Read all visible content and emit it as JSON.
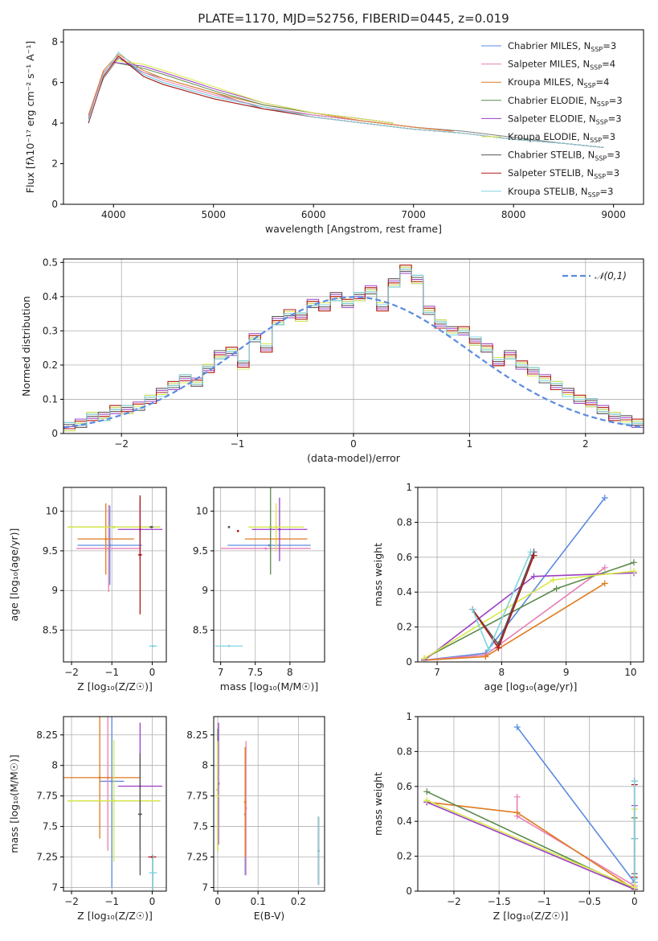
{
  "figure_title": "PLATE=1170, MJD=52756, FIBERID=0445, z=0.019",
  "series_colors": [
    "#5b8be0",
    "#e87fb5",
    "#e07a1f",
    "#5a8a4a",
    "#9b3fc4",
    "#d8e84a",
    "#555555",
    "#b01818",
    "#7fd4e0"
  ],
  "chart_data": [
    {
      "id": "spectrum",
      "type": "line",
      "title": "PLATE=1170, MJD=52756, FIBERID=0445, z=0.019",
      "xlabel": "wavelength [Angstrom, rest frame]",
      "ylabel": "Flux [fλ10⁻¹⁷ erg cm⁻² s⁻¹ A⁻¹]",
      "xlim": [
        3500,
        9300
      ],
      "ylim": [
        0,
        8.6
      ],
      "xticks": [
        4000,
        5000,
        6000,
        7000,
        8000,
        9000
      ],
      "yticks": [
        0,
        2,
        4,
        6,
        8
      ],
      "legend": "top-right",
      "data": {
        "color": "#808080",
        "x": [
          3750,
          3900,
          4050,
          4300,
          4500,
          5000,
          5500,
          6000,
          6500,
          7000,
          7500,
          8000,
          8500,
          8900
        ],
        "y": [
          4.2,
          6.2,
          7.2,
          6.5,
          6.2,
          5.5,
          4.7,
          4.4,
          4.1,
          3.8,
          3.6,
          3.3,
          3.0,
          2.8
        ]
      },
      "series": [
        {
          "name": "Chabrier MILES, N_SSP=3",
          "label_main": "Chabrier MILES, N",
          "label_sub": "SSP",
          "label_tail": "=3",
          "x": [
            3750,
            3900,
            4050,
            4300,
            4500,
            5000,
            5500,
            6000,
            6500,
            7000,
            7400
          ],
          "y": [
            4.3,
            6.5,
            7.3,
            6.4,
            6.0,
            5.3,
            4.8,
            4.4,
            4.1,
            3.8,
            3.6
          ]
        },
        {
          "name": "Salpeter MILES, N_SSP=4",
          "label_main": "Salpeter MILES, N",
          "label_sub": "SSP",
          "label_tail": "=4",
          "x": [
            3750,
            3900,
            4050,
            4300,
            4500,
            5000,
            5500,
            6000,
            6500,
            7000,
            7400
          ],
          "y": [
            4.3,
            6.5,
            7.3,
            6.5,
            6.1,
            5.4,
            4.8,
            4.4,
            4.1,
            3.8,
            3.6
          ]
        },
        {
          "name": "Kroupa MILES, N_SSP=4",
          "label_main": "Kroupa MILES, N",
          "label_sub": "SSP",
          "label_tail": "=4",
          "x": [
            3750,
            3900,
            4050,
            4300,
            4500,
            5000,
            5500,
            6000,
            6500,
            7000,
            7400
          ],
          "y": [
            4.4,
            6.6,
            7.4,
            6.6,
            6.2,
            5.5,
            4.9,
            4.5,
            4.1,
            3.8,
            3.6
          ]
        },
        {
          "name": "Chabrier ELODIE, N_SSP=3",
          "label_main": "Chabrier ELODIE, N",
          "label_sub": "SSP",
          "label_tail": "=3",
          "x": [
            4000,
            4300,
            4500,
            5000,
            5500,
            6000,
            6500,
            6800
          ],
          "y": [
            7.0,
            6.7,
            6.4,
            5.6,
            4.9,
            4.5,
            4.2,
            4.0
          ]
        },
        {
          "name": "Salpeter ELODIE, N_SSP=3",
          "label_main": "Salpeter ELODIE, N",
          "label_sub": "SSP",
          "label_tail": "=3",
          "x": [
            4000,
            4300,
            4500,
            5000,
            5500,
            6000,
            6500,
            6800
          ],
          "y": [
            7.0,
            6.8,
            6.5,
            5.7,
            5.0,
            4.5,
            4.2,
            4.0
          ]
        },
        {
          "name": "Kroupa ELODIE, N_SSP=3",
          "label_main": "Kroupa ELODIE, N",
          "label_sub": "SSP",
          "label_tail": "=3",
          "x": [
            4000,
            4300,
            4500,
            5000,
            5500,
            6000,
            6500,
            6800
          ],
          "y": [
            7.1,
            6.9,
            6.6,
            5.8,
            5.0,
            4.5,
            4.2,
            4.0
          ]
        },
        {
          "name": "Chabrier STELIB, N_SSP=3",
          "label_main": "Chabrier STELIB, N",
          "label_sub": "SSP",
          "label_tail": "=3",
          "x": [
            3750,
            3900,
            4050,
            4300,
            4500,
            5000,
            5500,
            6000,
            6500,
            7000,
            7500,
            8000,
            8500,
            8900
          ],
          "y": [
            4.0,
            6.3,
            7.3,
            6.3,
            5.9,
            5.2,
            4.7,
            4.3,
            4.0,
            3.7,
            3.5,
            3.2,
            3.0,
            2.8
          ]
        },
        {
          "name": "Salpeter STELIB, N_SSP=3",
          "label_main": "Salpeter STELIB, N",
          "label_sub": "SSP",
          "label_tail": "=3",
          "x": [
            3750,
            3900,
            4050,
            4300,
            4500,
            5000,
            5500,
            6000,
            6500,
            7000,
            7500,
            8000,
            8500,
            8900
          ],
          "y": [
            4.0,
            6.3,
            7.3,
            6.3,
            5.9,
            5.2,
            4.7,
            4.3,
            4.0,
            3.7,
            3.5,
            3.2,
            3.0,
            2.8
          ]
        },
        {
          "name": "Kroupa STELIB, N_SSP=3",
          "label_main": "Kroupa STELIB, N",
          "label_sub": "SSP",
          "label_tail": "=3",
          "x": [
            3750,
            3900,
            4050,
            4300,
            4500,
            5000,
            5500,
            6000,
            6500,
            7000,
            7500,
            8000,
            8500,
            8900
          ],
          "y": [
            4.1,
            6.4,
            7.5,
            6.4,
            6.0,
            5.3,
            4.8,
            4.3,
            4.0,
            3.7,
            3.5,
            3.2,
            3.0,
            2.8
          ]
        }
      ]
    },
    {
      "id": "residuals",
      "type": "line",
      "xlabel": "(data-model)/error",
      "ylabel": "Normed distribution",
      "xlim": [
        -2.5,
        2.5
      ],
      "ylim": [
        0,
        0.51
      ],
      "xticks": [
        -2,
        -1,
        0,
        1,
        2
      ],
      "yticks": [
        0.0,
        0.1,
        0.2,
        0.3,
        0.4,
        0.5
      ],
      "grid": true,
      "legend": "top-right",
      "reference_label": "𝒩(0,1)",
      "reference_color": "#5b8be0",
      "hist_edges_start": -2.5,
      "hist_bin_width": 0.1,
      "hist_values": [
        0.02,
        0.03,
        0.05,
        0.05,
        0.07,
        0.07,
        0.08,
        0.1,
        0.12,
        0.14,
        0.16,
        0.15,
        0.19,
        0.23,
        0.24,
        0.2,
        0.28,
        0.25,
        0.33,
        0.35,
        0.34,
        0.38,
        0.37,
        0.4,
        0.38,
        0.4,
        0.42,
        0.37,
        0.44,
        0.48,
        0.45,
        0.36,
        0.32,
        0.3,
        0.3,
        0.27,
        0.25,
        0.21,
        0.23,
        0.2,
        0.18,
        0.16,
        0.14,
        0.12,
        0.1,
        0.09,
        0.07,
        0.05,
        0.04,
        0.03
      ]
    },
    {
      "id": "age-vs-Z",
      "type": "scatter",
      "xlabel": "Z [log₁₀(Z/Z☉)]",
      "ylabel": "age  [log₁₀(age/yr)]",
      "xlim": [
        -2.2,
        0.35
      ],
      "ylim": [
        8.1,
        10.3
      ],
      "xticks": [
        -2,
        -1,
        0
      ],
      "yticks": [
        8.5,
        9.0,
        9.5,
        10.0
      ],
      "grid": true,
      "points": [
        {
          "color": "#5b8be0",
          "x": -1.05,
          "y": 9.57,
          "xerr": 0.8,
          "yerr": 0.5
        },
        {
          "color": "#e87fb5",
          "x": -1.08,
          "y": 9.53,
          "xerr": 0.8,
          "yerr": 0.55
        },
        {
          "color": "#e07a1f",
          "x": -1.15,
          "y": 9.65,
          "xerr": 0.7,
          "yerr": 0.45
        },
        {
          "color": "#5a8a4a",
          "x": -0.95,
          "y": 9.8,
          "xerr": 1.15,
          "yerr": 0.0
        },
        {
          "color": "#9b3fc4",
          "x": -0.3,
          "y": 9.77,
          "xerr": 0.55,
          "yerr": 0.38
        },
        {
          "color": "#d8e84a",
          "x": -0.95,
          "y": 9.8,
          "xerr": 1.15,
          "yerr": 0.0
        },
        {
          "color": "#555555",
          "x": -0.02,
          "y": 9.8,
          "xerr": 0.05,
          "yerr": 0.0
        },
        {
          "color": "#b01818",
          "x": -0.3,
          "y": 9.45,
          "xerr": 0.05,
          "yerr": 0.75
        },
        {
          "color": "#7fd4e0",
          "x": 0.02,
          "y": 8.3,
          "xerr": 0.1,
          "yerr": 0.0
        }
      ]
    },
    {
      "id": "age-vs-mass",
      "type": "scatter",
      "xlabel": "mass [log₁₀(M/M☉)]",
      "ylabel": "",
      "xlim": [
        6.9,
        8.5
      ],
      "ylim": [
        8.1,
        10.3
      ],
      "xticks": [
        7.0,
        7.5,
        8.0
      ],
      "yticks": [
        8.5,
        9.0,
        9.5,
        10.0
      ],
      "grid": true,
      "points": [
        {
          "color": "#5b8be0",
          "x": 7.7,
          "y": 9.57,
          "xerr": 0.6,
          "yerr": 0.0
        },
        {
          "color": "#e87fb5",
          "x": 7.65,
          "y": 9.53,
          "xerr": 0.65,
          "yerr": 0.0
        },
        {
          "color": "#e07a1f",
          "x": 7.8,
          "y": 9.65,
          "xerr": 0.45,
          "yerr": 0.0
        },
        {
          "color": "#5a8a4a",
          "x": 7.72,
          "y": 9.8,
          "xerr": 0.0,
          "yerr": 0.6
        },
        {
          "color": "#9b3fc4",
          "x": 7.85,
          "y": 9.77,
          "xerr": 0.4,
          "yerr": 0.4
        },
        {
          "color": "#d8e84a",
          "x": 7.8,
          "y": 9.8,
          "xerr": 0.4,
          "yerr": 0.3
        },
        {
          "color": "#555555",
          "x": 7.12,
          "y": 9.8,
          "xerr": 0.0,
          "yerr": 0.0
        },
        {
          "color": "#b01818",
          "x": 7.25,
          "y": 9.75,
          "xerr": 0.0,
          "yerr": 0.0
        },
        {
          "color": "#7fd4e0",
          "x": 7.12,
          "y": 8.3,
          "xerr": 0.2,
          "yerr": 0.0
        }
      ]
    },
    {
      "id": "mass-weight-vs-age",
      "type": "line",
      "xlabel": "age  [log₁₀(age/yr)]",
      "ylabel": "mass weight",
      "xlim": [
        6.7,
        10.2
      ],
      "ylim": [
        0,
        1.0
      ],
      "xticks": [
        7,
        8,
        9,
        10
      ],
      "yticks": [
        0.0,
        0.2,
        0.4,
        0.6,
        0.8,
        1.0
      ],
      "grid": true,
      "series": [
        {
          "color": "#5b8be0",
          "x": [
            6.8,
            7.75,
            9.6
          ],
          "y": [
            0.01,
            0.05,
            0.94
          ]
        },
        {
          "color": "#e87fb5",
          "x": [
            6.8,
            7.75,
            9.6
          ],
          "y": [
            0.01,
            0.04,
            0.54
          ]
        },
        {
          "color": "#e07a1f",
          "x": [
            6.8,
            7.75,
            9.6
          ],
          "y": [
            0.01,
            0.03,
            0.45
          ]
        },
        {
          "color": "#5a8a4a",
          "x": [
            6.8,
            8.85,
            10.05
          ],
          "y": [
            0.02,
            0.42,
            0.57
          ]
        },
        {
          "color": "#9b3fc4",
          "x": [
            6.8,
            8.5,
            10.05
          ],
          "y": [
            0.01,
            0.49,
            0.51
          ]
        },
        {
          "color": "#d8e84a",
          "x": [
            6.8,
            8.8,
            10.05
          ],
          "y": [
            0.02,
            0.47,
            0.52
          ]
        },
        {
          "color": "#555555",
          "x": [
            7.55,
            7.95,
            8.5
          ],
          "y": [
            0.3,
            0.1,
            0.63
          ]
        },
        {
          "color": "#b01818",
          "x": [
            7.55,
            7.95,
            8.5
          ],
          "y": [
            0.3,
            0.08,
            0.61
          ]
        },
        {
          "color": "#7fd4e0",
          "x": [
            7.55,
            7.8,
            8.45
          ],
          "y": [
            0.3,
            0.07,
            0.63
          ]
        }
      ]
    },
    {
      "id": "mass-vs-Z",
      "type": "scatter",
      "xlabel": "Z [log₁₀(Z/Z☉)]",
      "ylabel": "mass [log₁₀(M/M☉)]",
      "xlim": [
        -2.2,
        0.35
      ],
      "ylim": [
        6.97,
        8.4
      ],
      "xticks": [
        -2,
        -1,
        0
      ],
      "yticks": [
        7.0,
        7.25,
        7.5,
        7.75,
        8.0,
        8.25
      ],
      "grid": true,
      "points": [
        {
          "color": "#5b8be0",
          "x": -1.0,
          "y": 7.87,
          "xerr": 0.3,
          "yerr": 0.87
        },
        {
          "color": "#e87fb5",
          "x": -1.1,
          "y": 7.9,
          "xerr": 0.2,
          "yerr": 0.6
        },
        {
          "color": "#e07a1f",
          "x": -1.3,
          "y": 7.9,
          "xerr": 1.0,
          "yerr": 0.5
        },
        {
          "color": "#5a8a4a",
          "x": -0.95,
          "y": 7.71,
          "xerr": 1.15,
          "yerr": 0.0
        },
        {
          "color": "#9b3fc4",
          "x": -0.3,
          "y": 7.83,
          "xerr": 0.55,
          "yerr": 0.52
        },
        {
          "color": "#d8e84a",
          "x": -0.95,
          "y": 7.71,
          "xerr": 1.15,
          "yerr": 0.5
        },
        {
          "color": "#555555",
          "x": -0.3,
          "y": 7.6,
          "xerr": 0.05,
          "yerr": 0.5
        },
        {
          "color": "#b01818",
          "x": 0.0,
          "y": 7.25,
          "xerr": 0.1,
          "yerr": 0.0
        },
        {
          "color": "#7fd4e0",
          "x": 0.02,
          "y": 7.12,
          "xerr": 0.1,
          "yerr": 0.15
        }
      ]
    },
    {
      "id": "mass-vs-ebv",
      "type": "scatter",
      "xlabel": "E(B-V)",
      "ylabel": "",
      "xlim": [
        -0.01,
        0.265
      ],
      "ylim": [
        6.97,
        8.4
      ],
      "xticks": [
        0.0,
        0.1,
        0.2
      ],
      "yticks": [
        7.0,
        7.25,
        7.5,
        7.75,
        8.0,
        8.25
      ],
      "grid": true,
      "points": [
        {
          "color": "#5b8be0",
          "x": 0.068,
          "y": 7.6,
          "xerr": 0.0,
          "yerr": 0.5
        },
        {
          "color": "#e87fb5",
          "x": 0.07,
          "y": 7.65,
          "xerr": 0.0,
          "yerr": 0.55
        },
        {
          "color": "#e07a1f",
          "x": 0.068,
          "y": 7.7,
          "xerr": 0.0,
          "yerr": 0.45
        },
        {
          "color": "#5a8a4a",
          "x": 0.0,
          "y": 7.8,
          "xerr": 0.0,
          "yerr": 0.5
        },
        {
          "color": "#9b3fc4",
          "x": 0.002,
          "y": 7.85,
          "xerr": 0.0,
          "yerr": 0.5
        },
        {
          "color": "#d8e84a",
          "x": 0.0,
          "y": 7.75,
          "xerr": 0.0,
          "yerr": 0.45
        },
        {
          "color": "#555555",
          "x": 0.25,
          "y": 7.3,
          "xerr": 0.0,
          "yerr": 0.28
        },
        {
          "color": "#b01818",
          "x": 0.25,
          "y": 7.3,
          "xerr": 0.0,
          "yerr": 0.28
        },
        {
          "color": "#7fd4e0",
          "x": 0.25,
          "y": 7.3,
          "xerr": 0.0,
          "yerr": 0.28
        }
      ]
    },
    {
      "id": "mass-weight-vs-Z",
      "type": "line",
      "xlabel": "Z [log₁₀(Z/Z☉)]",
      "ylabel": "mass weight",
      "xlim": [
        -2.4,
        0.1
      ],
      "ylim": [
        0,
        1.0
      ],
      "xticks": [
        -2.0,
        -1.5,
        -1.0,
        -0.5,
        0.0
      ],
      "yticks": [
        0.0,
        0.2,
        0.4,
        0.6,
        0.8,
        1.0
      ],
      "grid": true,
      "series": [
        {
          "color": "#5b8be0",
          "x": [
            -1.3,
            0.0
          ],
          "y": [
            0.94,
            0.05
          ]
        },
        {
          "color": "#e87fb5",
          "x": [
            -1.3,
            -1.3,
            0.0
          ],
          "y": [
            0.54,
            0.43,
            0.03
          ]
        },
        {
          "color": "#e07a1f",
          "x": [
            -2.3,
            -1.3,
            0.0
          ],
          "y": [
            0.51,
            0.45,
            0.01
          ]
        },
        {
          "color": "#5a8a4a",
          "x": [
            -2.3,
            0.0,
            0.0
          ],
          "y": [
            0.57,
            0.01,
            0.42
          ]
        },
        {
          "color": "#9b3fc4",
          "x": [
            -2.3,
            0.0,
            0.0
          ],
          "y": [
            0.51,
            0.01,
            0.49
          ]
        },
        {
          "color": "#d8e84a",
          "x": [
            -2.3,
            0.0,
            0.0
          ],
          "y": [
            0.52,
            0.02,
            0.47
          ]
        },
        {
          "color": "#555555",
          "x": [
            0.0,
            0.0,
            0.0
          ],
          "y": [
            0.3,
            0.1,
            0.63
          ]
        },
        {
          "color": "#b01818",
          "x": [
            0.0,
            0.0,
            0.0
          ],
          "y": [
            0.3,
            0.08,
            0.61
          ]
        },
        {
          "color": "#7fd4e0",
          "x": [
            0.0,
            0.0,
            0.0
          ],
          "y": [
            0.3,
            0.07,
            0.63
          ]
        }
      ]
    }
  ]
}
